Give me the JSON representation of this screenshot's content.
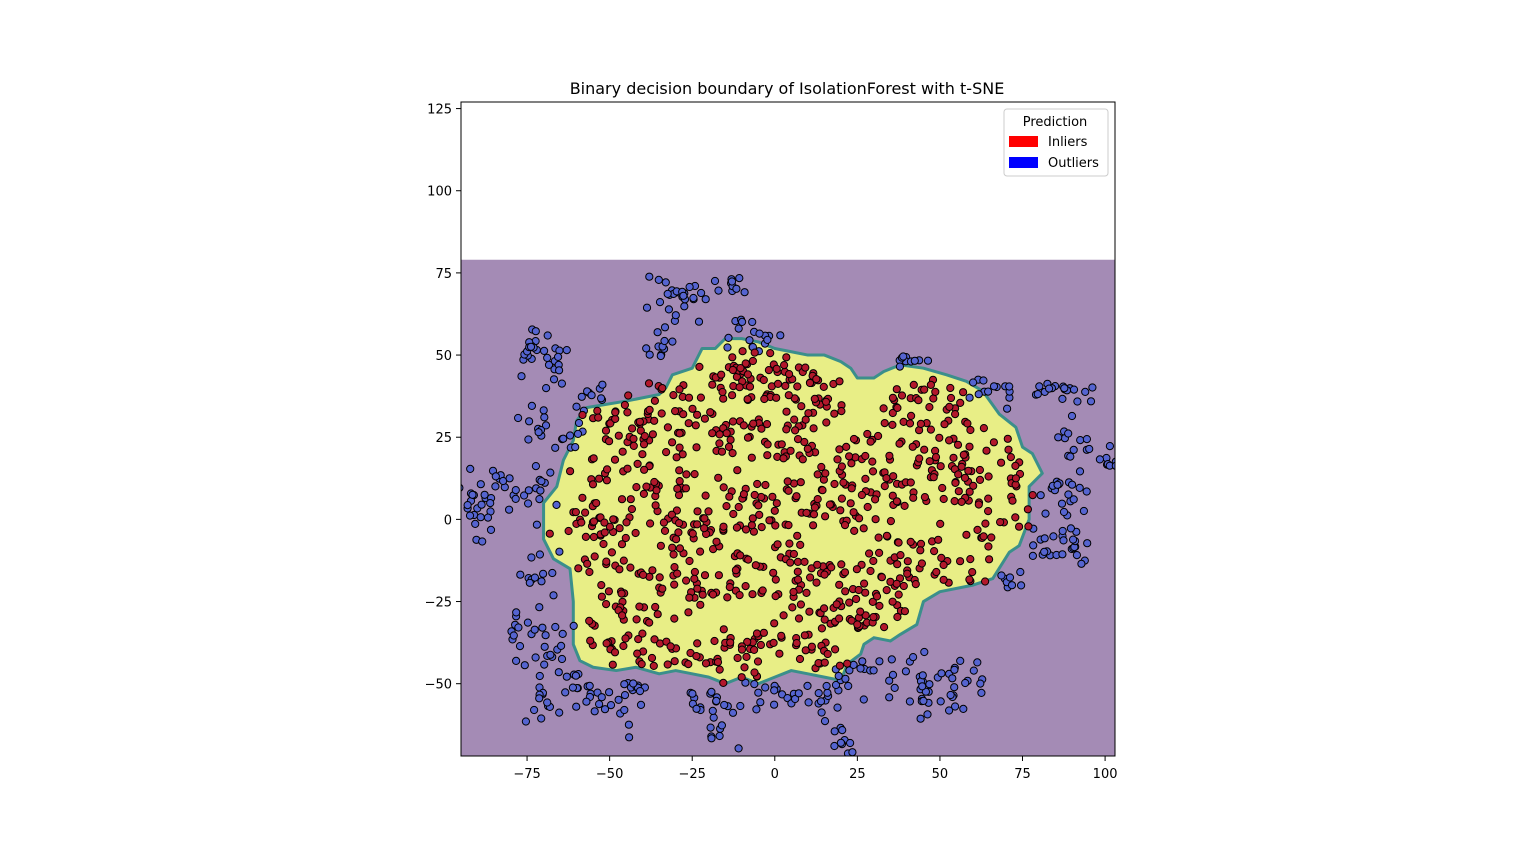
{
  "chart_data": {
    "type": "scatter",
    "title": "Binary decision boundary of IsolationForest with t-SNE",
    "xlabel": "",
    "ylabel": "",
    "xlim": [
      -95,
      103
    ],
    "ylim": [
      -72,
      127
    ],
    "xticks": [
      -75,
      -50,
      -25,
      0,
      25,
      50,
      75,
      100
    ],
    "yticks": [
      -50,
      -25,
      0,
      25,
      50,
      75,
      100,
      125
    ],
    "xtick_labels": [
      "−75",
      "−50",
      "−25",
      "0",
      "25",
      "50",
      "75",
      "100"
    ],
    "ytick_labels": [
      "−50",
      "−25",
      "0",
      "25",
      "50",
      "75",
      "100",
      "125"
    ],
    "grid": false,
    "legend": {
      "title": "Prediction",
      "placement": "upper right",
      "entries": [
        {
          "label": "Inliers",
          "color": "#ff0000"
        },
        {
          "label": "Outliers",
          "color": "#0000ff"
        }
      ]
    },
    "background_region": {
      "name": "outlier region",
      "color": "#a48bb5",
      "x": [
        -95,
        103
      ],
      "y": [
        -72,
        79
      ]
    },
    "boundary_color": "#3b8f8b",
    "inlier_region": {
      "name": "inlier region",
      "color": "#e8ee86",
      "polygon": [
        [
          -57,
          34
        ],
        [
          -45,
          36
        ],
        [
          -35,
          38
        ],
        [
          -33,
          40
        ],
        [
          -31,
          44
        ],
        [
          -25,
          46
        ],
        [
          -22,
          52
        ],
        [
          -18,
          52
        ],
        [
          -15,
          55
        ],
        [
          -10,
          55
        ],
        [
          -5,
          54
        ],
        [
          0,
          52
        ],
        [
          5,
          51
        ],
        [
          10,
          50
        ],
        [
          15,
          50
        ],
        [
          20,
          48
        ],
        [
          23,
          46
        ],
        [
          25,
          43
        ],
        [
          30,
          43
        ],
        [
          33,
          45
        ],
        [
          38,
          47
        ],
        [
          45,
          46
        ],
        [
          52,
          44
        ],
        [
          58,
          42
        ],
        [
          63,
          39
        ],
        [
          68,
          32
        ],
        [
          73,
          28
        ],
        [
          75,
          22
        ],
        [
          78,
          20
        ],
        [
          81,
          14
        ],
        [
          77,
          10
        ],
        [
          77,
          0
        ],
        [
          74,
          -8
        ],
        [
          71,
          -10
        ],
        [
          66,
          -18
        ],
        [
          60,
          -20
        ],
        [
          50,
          -22
        ],
        [
          45,
          -25
        ],
        [
          43,
          -32
        ],
        [
          38,
          -35
        ],
        [
          35,
          -37
        ],
        [
          30,
          -36
        ],
        [
          27,
          -38
        ],
        [
          26,
          -41
        ],
        [
          22,
          -44
        ],
        [
          20,
          -49
        ],
        [
          15,
          -48
        ],
        [
          10,
          -47
        ],
        [
          5,
          -46
        ],
        [
          0,
          -48
        ],
        [
          -5,
          -50
        ],
        [
          -10,
          -48
        ],
        [
          -15,
          -50
        ],
        [
          -20,
          -48
        ],
        [
          -25,
          -47
        ],
        [
          -30,
          -46
        ],
        [
          -35,
          -47
        ],
        [
          -42,
          -45
        ],
        [
          -48,
          -46
        ],
        [
          -55,
          -45
        ],
        [
          -59,
          -43
        ],
        [
          -61,
          -38
        ],
        [
          -61,
          -25
        ],
        [
          -62,
          -15
        ],
        [
          -67,
          -12
        ],
        [
          -70,
          -6
        ],
        [
          -70,
          5
        ],
        [
          -66,
          10
        ],
        [
          -64,
          18
        ],
        [
          -61,
          24
        ],
        [
          -60,
          30
        ]
      ]
    },
    "inliers": {
      "name": "Inliers",
      "fill": "#b2182b",
      "clusters": [
        [
          -50,
          30,
          5,
          3,
          12
        ],
        [
          -42,
          28,
          6,
          4,
          14
        ],
        [
          -35,
          32,
          5,
          4,
          12
        ],
        [
          -28,
          38,
          4,
          2,
          8
        ],
        [
          -18,
          45,
          4,
          3,
          10
        ],
        [
          -14,
          38,
          3,
          6,
          12
        ],
        [
          -12,
          47,
          3,
          3,
          8
        ],
        [
          -7,
          40,
          3,
          4,
          10
        ],
        [
          0,
          43,
          3,
          3,
          8
        ],
        [
          -2,
          37,
          3,
          2,
          6
        ],
        [
          6,
          42,
          3,
          5,
          12
        ],
        [
          12,
          43,
          4,
          4,
          12
        ],
        [
          18,
          38,
          3,
          3,
          8
        ],
        [
          12,
          30,
          4,
          3,
          10
        ],
        [
          0,
          30,
          6,
          4,
          14
        ],
        [
          -5,
          25,
          4,
          3,
          10
        ],
        [
          -15,
          25,
          4,
          3,
          10
        ],
        [
          -22,
          28,
          3,
          3,
          8
        ],
        [
          -30,
          26,
          4,
          4,
          10
        ],
        [
          -38,
          22,
          4,
          3,
          10
        ],
        [
          -52,
          15,
          5,
          4,
          12
        ],
        [
          -55,
          4,
          5,
          4,
          12
        ],
        [
          -58,
          -2,
          4,
          3,
          10
        ],
        [
          -48,
          -4,
          5,
          3,
          12
        ],
        [
          -38,
          8,
          5,
          4,
          14
        ],
        [
          -28,
          10,
          4,
          3,
          10
        ],
        [
          -22,
          2,
          5,
          4,
          14
        ],
        [
          -32,
          -2,
          4,
          3,
          10
        ],
        [
          -18,
          -6,
          4,
          3,
          10
        ],
        [
          -10,
          8,
          4,
          4,
          12
        ],
        [
          0,
          10,
          5,
          4,
          14
        ],
        [
          -5,
          -4,
          3,
          3,
          10
        ],
        [
          5,
          -8,
          4,
          4,
          12
        ],
        [
          10,
          2,
          4,
          3,
          10
        ],
        [
          18,
          8,
          5,
          4,
          14
        ],
        [
          28,
          10,
          5,
          4,
          14
        ],
        [
          25,
          0,
          4,
          3,
          10
        ],
        [
          35,
          -5,
          4,
          4,
          12
        ],
        [
          38,
          8,
          5,
          4,
          14
        ],
        [
          42,
          22,
          5,
          4,
          14
        ],
        [
          38,
          30,
          4,
          4,
          12
        ],
        [
          45,
          38,
          5,
          3,
          12
        ],
        [
          52,
          34,
          4,
          3,
          10
        ],
        [
          55,
          26,
          5,
          4,
          12
        ],
        [
          58,
          15,
          4,
          3,
          10
        ],
        [
          50,
          10,
          5,
          4,
          14
        ],
        [
          62,
          6,
          5,
          4,
          12
        ],
        [
          68,
          20,
          5,
          4,
          12
        ],
        [
          72,
          10,
          4,
          4,
          10
        ],
        [
          65,
          -6,
          5,
          4,
          12
        ],
        [
          58,
          -14,
          4,
          3,
          10
        ],
        [
          48,
          -8,
          5,
          4,
          12
        ],
        [
          42,
          -15,
          4,
          3,
          10
        ],
        [
          30,
          -15,
          5,
          4,
          12
        ],
        [
          22,
          -20,
          4,
          4,
          12
        ],
        [
          15,
          -12,
          4,
          3,
          10
        ],
        [
          10,
          -22,
          4,
          4,
          12
        ],
        [
          0,
          -20,
          5,
          4,
          14
        ],
        [
          -8,
          -15,
          4,
          3,
          10
        ],
        [
          -15,
          -22,
          5,
          4,
          14
        ],
        [
          -25,
          -20,
          4,
          3,
          10
        ],
        [
          -30,
          -12,
          4,
          4,
          12
        ],
        [
          -40,
          -18,
          5,
          4,
          12
        ],
        [
          -48,
          -25,
          4,
          4,
          12
        ],
        [
          -55,
          -15,
          4,
          4,
          10
        ],
        [
          -52,
          -35,
          4,
          3,
          10
        ],
        [
          -42,
          -32,
          5,
          4,
          12
        ],
        [
          -35,
          -38,
          4,
          3,
          10
        ],
        [
          -25,
          -42,
          5,
          3,
          12
        ],
        [
          -15,
          -35,
          4,
          4,
          12
        ],
        [
          -5,
          -38,
          4,
          3,
          10
        ],
        [
          5,
          -35,
          4,
          4,
          12
        ],
        [
          12,
          -40,
          4,
          3,
          10
        ],
        [
          20,
          -32,
          4,
          3,
          10
        ],
        [
          28,
          -30,
          4,
          3,
          10
        ],
        [
          36,
          -28,
          4,
          3,
          10
        ],
        [
          18,
          -44,
          3,
          2,
          6
        ],
        [
          -45,
          -43,
          4,
          2,
          8
        ],
        [
          -8,
          -45,
          4,
          2,
          8
        ],
        [
          30,
          20,
          4,
          3,
          10
        ],
        [
          20,
          20,
          4,
          3,
          10
        ],
        [
          8,
          20,
          4,
          3,
          10
        ]
      ]
    },
    "outliers": {
      "name": "Outliers",
      "fill": "#5564d0",
      "clusters": [
        [
          -74,
          51,
          3,
          4,
          16
        ],
        [
          -66,
          47,
          3,
          4,
          14
        ],
        [
          -55,
          38,
          3,
          2,
          8
        ],
        [
          -72,
          28,
          3,
          3,
          12
        ],
        [
          -63,
          28,
          3,
          3,
          10
        ],
        [
          -83,
          10,
          4,
          4,
          22
        ],
        [
          -90,
          0,
          4,
          4,
          18
        ],
        [
          -72,
          8,
          3,
          4,
          12
        ],
        [
          -72,
          -15,
          3,
          4,
          12
        ],
        [
          -75,
          -33,
          4,
          4,
          18
        ],
        [
          -67,
          -38,
          3,
          3,
          10
        ],
        [
          -62,
          -50,
          4,
          4,
          14
        ],
        [
          -70,
          -56,
          3,
          3,
          12
        ],
        [
          -50,
          -56,
          4,
          4,
          16
        ],
        [
          -42,
          -52,
          3,
          3,
          10
        ],
        [
          -15,
          -60,
          4,
          4,
          16
        ],
        [
          -22,
          -55,
          3,
          3,
          10
        ],
        [
          -5,
          -52,
          3,
          2,
          8
        ],
        [
          5,
          -55,
          2,
          3,
          8
        ],
        [
          15,
          -55,
          3,
          3,
          10
        ],
        [
          22,
          -50,
          3,
          3,
          10
        ],
        [
          20,
          -67,
          2,
          3,
          10
        ],
        [
          30,
          -45,
          3,
          2,
          8
        ],
        [
          42,
          -50,
          4,
          5,
          22
        ],
        [
          52,
          -52,
          4,
          4,
          14
        ],
        [
          60,
          -50,
          3,
          3,
          10
        ],
        [
          72,
          -17,
          3,
          2,
          8
        ],
        [
          85,
          -10,
          4,
          3,
          16
        ],
        [
          88,
          -6,
          4,
          3,
          12
        ],
        [
          85,
          10,
          3,
          3,
          10
        ],
        [
          90,
          5,
          3,
          3,
          10
        ],
        [
          90,
          22,
          3,
          4,
          12
        ],
        [
          90,
          36,
          3,
          3,
          12
        ],
        [
          82,
          40,
          2,
          2,
          8
        ],
        [
          100,
          18,
          2,
          2,
          8
        ],
        [
          70,
          36,
          2,
          2,
          6
        ],
        [
          62,
          40,
          3,
          2,
          8
        ],
        [
          40,
          49,
          3,
          2,
          10
        ],
        [
          -33,
          65,
          4,
          4,
          18
        ],
        [
          -25,
          70,
          3,
          2,
          10
        ],
        [
          -13,
          70,
          3,
          3,
          10
        ],
        [
          -10,
          56,
          3,
          3,
          10
        ],
        [
          -4,
          56,
          3,
          2,
          8
        ],
        [
          -33,
          53,
          3,
          3,
          10
        ]
      ]
    }
  }
}
